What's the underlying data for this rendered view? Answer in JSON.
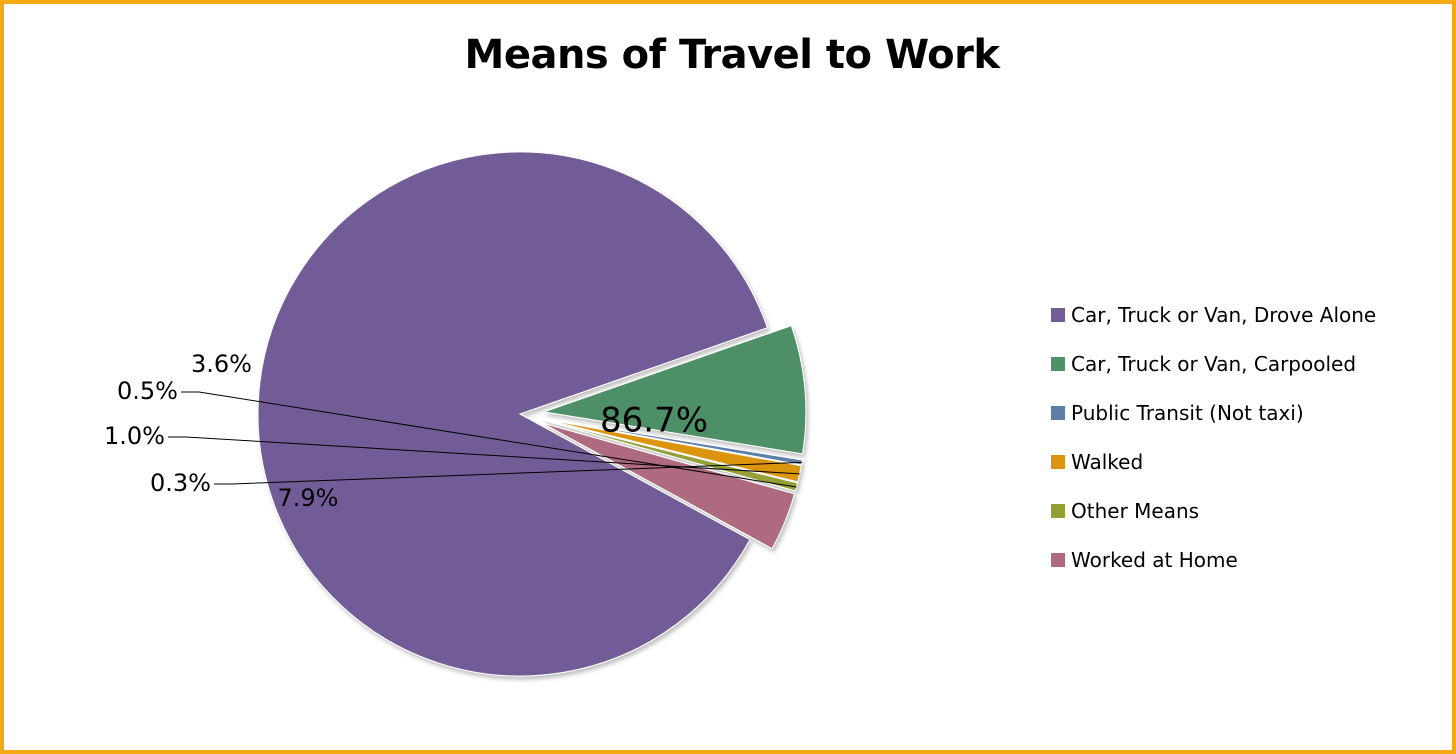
{
  "chart_data": {
    "type": "pie",
    "title": "Means of Travel to Work",
    "legend_position": "right",
    "slices": [
      {
        "name": "Car, Truck or Van, Drove Alone",
        "value": 86.7,
        "label": "86.7%",
        "color": "#725c98"
      },
      {
        "name": "Car, Truck or Van, Carpooled",
        "value": 7.9,
        "label": "7.9%",
        "color": "#4e9068"
      },
      {
        "name": "Public Transit (Not taxi)",
        "value": 0.3,
        "label": "0.3%",
        "color": "#5b7fa8"
      },
      {
        "name": "Walked",
        "value": 1.0,
        "label": "1.0%",
        "color": "#dd9410"
      },
      {
        "name": "Other Means",
        "value": 0.5,
        "label": "0.5%",
        "color": "#94a034"
      },
      {
        "name": "Worked at Home",
        "value": 3.6,
        "label": "3.6%",
        "color": "#ae6b7f"
      }
    ]
  }
}
